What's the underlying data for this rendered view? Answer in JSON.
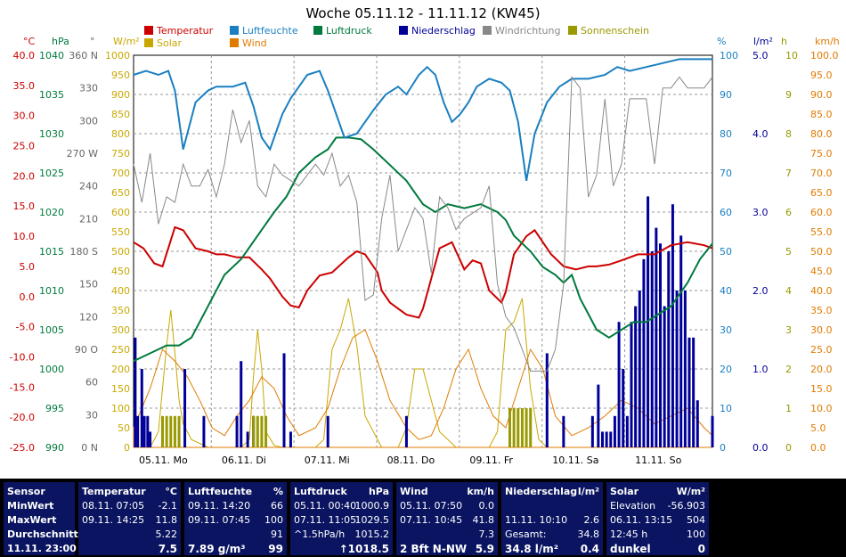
{
  "chart_data": {
    "type": "line",
    "title": "Woche 05.11.12 - 11.11.12 (KW45)",
    "x_range": [
      0,
      7
    ],
    "x_labels": [
      "05.11. Mo",
      "06.11. Di",
      "07.11. Mi",
      "08.11. Do",
      "09.11. Fr",
      "10.11. Sa",
      "11.11. So"
    ],
    "legend": [
      {
        "name": "Temperatur",
        "color": "#cc0000"
      },
      {
        "name": "Luftfeuchte",
        "color": "#1a7fc1"
      },
      {
        "name": "Luftdruck",
        "color": "#007a3d"
      },
      {
        "name": "Niederschlag",
        "color": "#000099"
      },
      {
        "name": "Windrichtung",
        "color": "#888888"
      },
      {
        "name": "Sonnenschein",
        "color": "#999900"
      },
      {
        "name": "Solar",
        "color": "#c8a800"
      },
      {
        "name": "Wind",
        "color": "#e07b00"
      }
    ],
    "axes": [
      {
        "unit": "°C",
        "color": "#cc0000",
        "min": -25,
        "max": 40,
        "ticks": [
          "40.0",
          "35.0",
          "30.0",
          "25.0",
          "20.0",
          "15.0",
          "10.0",
          "5.0",
          "0.0",
          "-5.0",
          "-10.0",
          "-15.0",
          "-20.0",
          "-25.0"
        ]
      },
      {
        "unit": "hPa",
        "color": "#007a3d",
        "min": 990,
        "max": 1040,
        "ticks": [
          "1040",
          "1035",
          "1030",
          "1025",
          "1020",
          "1015",
          "1010",
          "1005",
          "1000",
          "995",
          "990"
        ]
      },
      {
        "unit": "°",
        "color": "#666666",
        "min": 0,
        "max": 360,
        "ticks": [
          "360 N",
          "330",
          "300",
          "270 W",
          "240",
          "210",
          "180 S",
          "150",
          "120",
          "90 O",
          "60",
          "30",
          "0 N"
        ]
      },
      {
        "unit": "W/m²",
        "color": "#c8a800",
        "min": 0,
        "max": 1000,
        "ticks": [
          "1000",
          "950",
          "900",
          "850",
          "800",
          "750",
          "700",
          "650",
          "600",
          "550",
          "500",
          "450",
          "400",
          "350",
          "300",
          "250",
          "200",
          "150",
          "100",
          "50",
          "0"
        ]
      },
      {
        "unit": "%",
        "color": "#1a7fc1",
        "min": 0,
        "max": 100,
        "ticks": [
          "100",
          "90",
          "80",
          "70",
          "60",
          "50",
          "40",
          "30",
          "20",
          "10",
          "0"
        ]
      },
      {
        "unit": "l/m²",
        "color": "#000099",
        "min": 0,
        "max": 5,
        "ticks": [
          "5.0",
          "4.0",
          "3.0",
          "2.0",
          "1.0",
          "0.0"
        ]
      },
      {
        "unit": "h",
        "color": "#999900",
        "min": 0,
        "max": 10,
        "ticks": [
          "10",
          "9",
          "8",
          "7",
          "6",
          "5",
          "4",
          "3",
          "2",
          "1",
          "0"
        ]
      },
      {
        "unit": "km/h",
        "color": "#e07b00",
        "min": 0,
        "max": 100,
        "ticks": [
          "100.0",
          "95.0",
          "90.0",
          "85.0",
          "80.0",
          "75.0",
          "70.0",
          "65.0",
          "60.0",
          "55.0",
          "50.0",
          "45.0",
          "40.0",
          "35.0",
          "30.0",
          "25.0",
          "20.0",
          "15.0",
          "10.0",
          "5.0",
          "0.0"
        ]
      }
    ],
    "series": [
      {
        "name": "Temperatur",
        "axis": "°C",
        "color": "#cc0000",
        "x": [
          0,
          0.12,
          0.25,
          0.35,
          0.42,
          0.5,
          0.6,
          0.75,
          0.9,
          1.0,
          1.1,
          1.25,
          1.4,
          1.55,
          1.65,
          1.8,
          1.9,
          2.0,
          2.1,
          2.25,
          2.4,
          2.6,
          2.7,
          2.8,
          2.95,
          3.0,
          3.1,
          3.2,
          3.3,
          3.45,
          3.5,
          3.6,
          3.7,
          3.85,
          4.0,
          4.1,
          4.2,
          4.3,
          4.45,
          4.5,
          4.6,
          4.75,
          4.85,
          4.95,
          5.05,
          5.2,
          5.35,
          5.5,
          5.6,
          5.75,
          5.9,
          6.1,
          6.3,
          6.5,
          6.7,
          6.9,
          7.0
        ],
        "y": [
          9,
          8,
          5.5,
          5,
          8,
          11.5,
          11,
          8,
          7.5,
          7,
          7,
          6.5,
          6.5,
          4.5,
          3,
          0,
          -1.5,
          -1.8,
          1,
          3.5,
          4,
          6.5,
          7.5,
          7,
          4,
          1,
          -1,
          -2,
          -3,
          -3.5,
          -2,
          3,
          8,
          9,
          4.5,
          6,
          5.5,
          1,
          -1,
          0.8,
          7,
          10,
          11,
          9,
          7,
          5,
          4.5,
          5,
          5,
          5.3,
          6,
          7,
          7,
          8.5,
          9,
          8.5,
          8
        ]
      },
      {
        "name": "Luftdruck",
        "axis": "hPa",
        "color": "#007a3d",
        "x": [
          0,
          0.2,
          0.4,
          0.55,
          0.7,
          0.8,
          0.95,
          1.1,
          1.3,
          1.5,
          1.7,
          1.85,
          2.0,
          2.2,
          2.35,
          2.45,
          2.6,
          2.75,
          2.9,
          3.1,
          3.3,
          3.5,
          3.65,
          3.8,
          4.0,
          4.2,
          4.4,
          4.5,
          4.6,
          4.8,
          4.95,
          5.1,
          5.2,
          5.3,
          5.4,
          5.5,
          5.6,
          5.75,
          5.9,
          6.05,
          6.2,
          6.35,
          6.5,
          6.7,
          6.85,
          7.0
        ],
        "y": [
          1001,
          1002,
          1003,
          1003,
          1004,
          1006,
          1009,
          1012,
          1014,
          1017,
          1020,
          1022,
          1025,
          1027,
          1028,
          1029.5,
          1029.5,
          1029.3,
          1028,
          1026,
          1024,
          1021,
          1020,
          1021,
          1020.5,
          1021,
          1020,
          1019,
          1017,
          1015,
          1013,
          1012,
          1011,
          1012,
          1009,
          1007,
          1005,
          1004,
          1005,
          1006,
          1006,
          1007,
          1008,
          1011,
          1014,
          1016
        ]
      },
      {
        "name": "Luftfeuchte",
        "axis": "%",
        "color": "#1a7fc1",
        "x": [
          0,
          0.15,
          0.3,
          0.42,
          0.5,
          0.6,
          0.75,
          0.9,
          1.0,
          1.2,
          1.35,
          1.45,
          1.55,
          1.65,
          1.8,
          1.9,
          2.0,
          2.1,
          2.25,
          2.35,
          2.45,
          2.55,
          2.7,
          2.9,
          3.05,
          3.2,
          3.3,
          3.45,
          3.55,
          3.65,
          3.75,
          3.85,
          3.95,
          4.05,
          4.15,
          4.3,
          4.45,
          4.55,
          4.65,
          4.75,
          4.85,
          5.0,
          5.15,
          5.3,
          5.5,
          5.7,
          5.85,
          6.0,
          6.2,
          6.4,
          6.6,
          6.8,
          7.0
        ],
        "y": [
          95,
          96,
          95,
          96,
          91,
          76,
          88,
          91,
          92,
          92,
          93,
          87,
          79,
          76,
          85,
          89,
          92,
          95,
          96,
          91,
          85,
          79,
          80,
          86,
          90,
          92,
          90,
          95,
          97,
          95,
          88,
          83,
          85,
          88,
          92,
          94,
          93,
          91,
          83,
          68,
          80,
          88,
          92,
          94,
          94,
          95,
          97,
          96,
          97,
          98,
          99,
          99,
          99
        ]
      },
      {
        "name": "Windrichtung",
        "axis": "°",
        "color": "#888888",
        "x": [
          0,
          0.1,
          0.2,
          0.3,
          0.4,
          0.5,
          0.6,
          0.7,
          0.8,
          0.9,
          1.0,
          1.1,
          1.2,
          1.3,
          1.4,
          1.5,
          1.6,
          1.7,
          1.8,
          1.9,
          2.0,
          2.1,
          2.2,
          2.3,
          2.4,
          2.5,
          2.6,
          2.7,
          2.8,
          2.9,
          3.0,
          3.1,
          3.2,
          3.3,
          3.4,
          3.5,
          3.6,
          3.7,
          3.8,
          3.9,
          4.0,
          4.1,
          4.2,
          4.3,
          4.4,
          4.5,
          4.6,
          4.7,
          4.8,
          4.9,
          5.0,
          5.1,
          5.2,
          5.3,
          5.4,
          5.5,
          5.6,
          5.7,
          5.8,
          5.9,
          6.0,
          6.1,
          6.2,
          6.3,
          6.4,
          6.5,
          6.6,
          6.7,
          6.8,
          6.9,
          7.0
        ],
        "y": [
          260,
          225,
          270,
          205,
          230,
          225,
          260,
          240,
          240,
          255,
          230,
          260,
          310,
          280,
          300,
          240,
          230,
          260,
          250,
          245,
          240,
          250,
          260,
          250,
          270,
          240,
          250,
          225,
          135,
          140,
          210,
          250,
          180,
          200,
          220,
          210,
          160,
          230,
          220,
          200,
          210,
          215,
          220,
          240,
          150,
          120,
          110,
          90,
          70,
          70,
          70,
          90,
          150,
          340,
          330,
          230,
          250,
          320,
          240,
          260,
          320,
          320,
          320,
          260,
          330,
          330,
          340,
          330,
          330,
          330,
          340
        ]
      }
    ],
    "bar_series": [
      {
        "name": "Niederschlag",
        "axis": "l/m²",
        "color": "#000099",
        "x": [
          0.02,
          0.05,
          0.1,
          0.13,
          0.17,
          0.2,
          0.62,
          0.85,
          1.25,
          1.3,
          1.38,
          1.45,
          1.82,
          1.9,
          2.35,
          3.3,
          5.0,
          5.2,
          5.55,
          5.62,
          5.67,
          5.72,
          5.77,
          5.82,
          5.87,
          5.92,
          5.97,
          6.02,
          6.07,
          6.12,
          6.17,
          6.22,
          6.27,
          6.32,
          6.37,
          6.42,
          6.47,
          6.52,
          6.57,
          6.62,
          6.67,
          6.72,
          6.77,
          6.82,
          7.0
        ],
        "values": [
          1.4,
          0.4,
          1.0,
          0.4,
          0.4,
          0.2,
          1.0,
          0.4,
          0.4,
          1.1,
          0.2,
          0.4,
          1.2,
          0.2,
          0.4,
          0.4,
          1.2,
          0.4,
          0.4,
          0.8,
          0.2,
          0.2,
          0.2,
          0.4,
          1.6,
          1.0,
          0.4,
          1.6,
          1.8,
          2.0,
          2.4,
          3.2,
          2.5,
          2.8,
          2.6,
          1.8,
          2.5,
          3.1,
          2.0,
          2.7,
          2.0,
          1.4,
          1.4,
          0.6,
          0.4
        ]
      },
      {
        "name": "Sonnenschein",
        "axis": "h",
        "color": "#999900",
        "x": [
          0.35,
          0.4,
          0.45,
          0.5,
          0.55,
          1.45,
          1.5,
          1.55,
          1.6,
          4.55,
          4.6,
          4.65,
          4.7,
          4.75,
          4.8
        ],
        "values": [
          0.8,
          0.8,
          0.8,
          0.8,
          0.8,
          0.8,
          0.8,
          0.8,
          0.8,
          1,
          1,
          1,
          1,
          1,
          1
        ]
      }
    ],
    "fill_series": [
      {
        "name": "Solar",
        "axis": "W/m²",
        "color": "#c8a800",
        "x": [
          0,
          0.2,
          0.3,
          0.4,
          0.45,
          0.5,
          0.55,
          0.6,
          0.7,
          0.9,
          1.0,
          1.3,
          1.4,
          1.45,
          1.5,
          1.55,
          1.6,
          1.7,
          1.8,
          2.0,
          2.2,
          2.3,
          2.4,
          2.5,
          2.6,
          2.7,
          2.8,
          3.0,
          3.2,
          3.3,
          3.4,
          3.5,
          3.6,
          3.7,
          3.9,
          4.0,
          4.3,
          4.4,
          4.5,
          4.6,
          4.7,
          4.8,
          4.9,
          5.0,
          5.2,
          5.5,
          6.0,
          6.5,
          7.0
        ],
        "values": [
          0,
          0,
          40,
          260,
          350,
          240,
          120,
          60,
          20,
          0,
          0,
          0,
          20,
          180,
          300,
          200,
          40,
          5,
          0,
          0,
          0,
          20,
          250,
          300,
          380,
          260,
          80,
          0,
          0,
          50,
          200,
          200,
          120,
          40,
          0,
          0,
          0,
          40,
          300,
          320,
          380,
          150,
          20,
          0,
          0,
          0,
          0,
          0,
          0
        ]
      },
      {
        "name": "Wind",
        "axis": "km/h",
        "color": "#e07b00",
        "x": [
          0,
          0.2,
          0.35,
          0.5,
          0.65,
          0.8,
          0.95,
          1.1,
          1.25,
          1.4,
          1.55,
          1.7,
          1.85,
          2.0,
          2.2,
          2.35,
          2.5,
          2.65,
          2.8,
          2.95,
          3.1,
          3.3,
          3.45,
          3.6,
          3.75,
          3.9,
          4.05,
          4.2,
          4.35,
          4.5,
          4.65,
          4.8,
          4.95,
          5.1,
          5.3,
          5.5,
          5.7,
          5.9,
          6.1,
          6.3,
          6.5,
          6.7,
          6.9,
          7.0
        ],
        "values": [
          5,
          15,
          25,
          22,
          18,
          12,
          5,
          3,
          8,
          12,
          18,
          15,
          8,
          3,
          5,
          10,
          20,
          28,
          30,
          22,
          12,
          5,
          2,
          3,
          10,
          20,
          25,
          15,
          8,
          5,
          15,
          25,
          20,
          8,
          3,
          5,
          8,
          12,
          10,
          6,
          8,
          10,
          5,
          3
        ]
      }
    ]
  },
  "stats": {
    "sensor": {
      "header": "Sensor",
      "rows": [
        "MinWert",
        "MaxWert",
        "Durchschnitt"
      ],
      "footer": "11.11. 23:00"
    },
    "temperatur": {
      "header": "Temperatur",
      "unit": "°C",
      "rows": [
        [
          "08.11.  07:05",
          "-2.1"
        ],
        [
          "09.11.  14:25",
          "11.8"
        ],
        [
          "",
          "5.22"
        ]
      ],
      "current": "7.5"
    },
    "luftfeuchte": {
      "header": "Luftfeuchte",
      "unit": "%",
      "rows": [
        [
          "09.11.  14:20",
          "66"
        ],
        [
          "09.11.  07:45",
          "100"
        ],
        [
          "",
          "91"
        ]
      ],
      "foot_left": "7.89 g/m³",
      "current": "99"
    },
    "luftdruck": {
      "header": "Luftdruck",
      "unit": "hPa",
      "rows": [
        [
          "05.11.  00:40",
          "1000.9"
        ],
        [
          "07.11.  11:05",
          "1029.5"
        ],
        [
          "^1.5hPa/h",
          "1015.2"
        ]
      ],
      "current": "↑1018.5"
    },
    "wind": {
      "header": "Wind",
      "unit": "km/h",
      "rows": [
        [
          "05.11.  07:50",
          "0.0"
        ],
        [
          "07.11.  10:45",
          "41.8"
        ],
        [
          "",
          "7.3"
        ]
      ],
      "foot_left": "2 Bft N-NW",
      "current": "5.9"
    },
    "niederschlag": {
      "header": "Niederschlag",
      "unit": "l/m²",
      "rows": [
        [
          "",
          ""
        ],
        [
          "11.11.  10:10",
          "2.6"
        ],
        [
          "Gesamt:",
          "34.8"
        ]
      ],
      "foot_left": "34.8 l/m²",
      "current": "0.4"
    },
    "solar": {
      "header": "Solar",
      "unit": "W/m²",
      "rows": [
        [
          "Elevation",
          "-56.903"
        ],
        [
          "06.11.  13:15",
          "504"
        ],
        [
          "12:45 h",
          "100"
        ]
      ],
      "foot_left": "dunkel",
      "current": "0"
    }
  }
}
